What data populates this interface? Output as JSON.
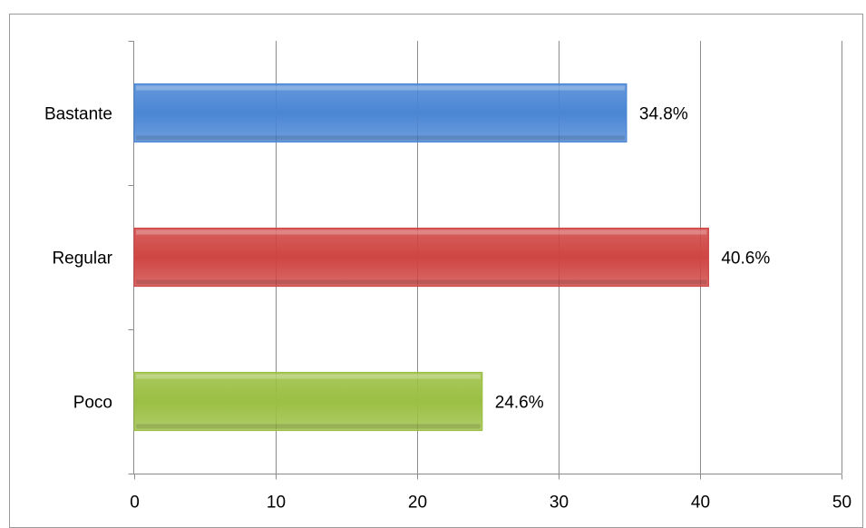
{
  "chart_data": {
    "type": "bar",
    "orientation": "horizontal",
    "categories": [
      "Bastante",
      "Regular",
      "Poco"
    ],
    "values": [
      34.8,
      40.6,
      24.6
    ],
    "data_labels": [
      "34.8%",
      "40.6%",
      "24.6%"
    ],
    "colors": [
      "#4a86d4",
      "#cf4543",
      "#9bbf43"
    ],
    "xlim": [
      0,
      50
    ],
    "xticks": [
      0,
      10,
      20,
      30,
      40,
      50
    ],
    "xtick_labels": [
      "0",
      "10",
      "20",
      "30",
      "40",
      "50"
    ],
    "grid": "vertical",
    "legend": "none"
  }
}
